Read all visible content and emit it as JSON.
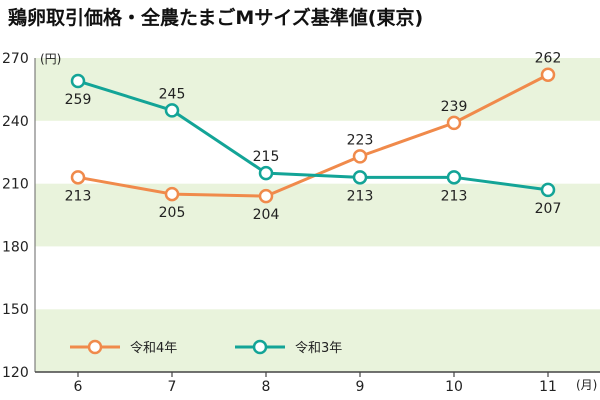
{
  "chart_data": {
    "type": "line",
    "title": "鶏卵取引価格・全農たまごMサイズ基準値(東京)",
    "x": [
      6,
      7,
      8,
      9,
      10,
      11
    ],
    "x_tick_labels": [
      "6",
      "7",
      "8",
      "9",
      "10",
      "11"
    ],
    "x_unit": "(月)",
    "y_unit": "(円)",
    "ylim": [
      120,
      270
    ],
    "y_ticks": [
      120,
      150,
      180,
      210,
      240,
      270
    ],
    "y_tick_labels": [
      "120",
      "150",
      "180",
      "210",
      "240",
      "270"
    ],
    "background": "horizontal bands (alternating light green / white)",
    "legend_position": "bottom-left",
    "series": [
      {
        "name": "令和4年",
        "color": "#f08a4b",
        "values": [
          213,
          205,
          204,
          223,
          239,
          262
        ],
        "labels": [
          "213",
          "205",
          "204",
          "223",
          "239",
          "262"
        ]
      },
      {
        "name": "令和3年",
        "color": "#13a497",
        "values": [
          259,
          245,
          215,
          213,
          213,
          207
        ],
        "labels": [
          "259",
          "245",
          "215",
          "213",
          "213",
          "207"
        ]
      }
    ]
  }
}
